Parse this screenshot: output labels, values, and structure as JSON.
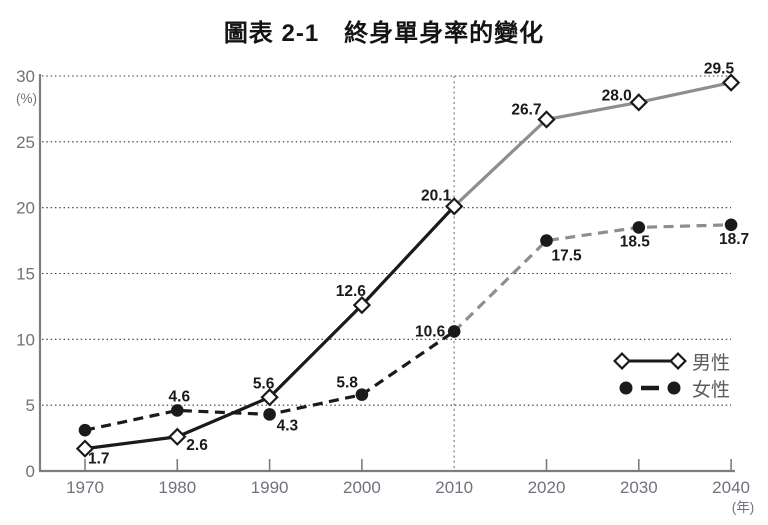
{
  "title": "圖表 2-1　終身單身率的變化",
  "chart_data": {
    "type": "line",
    "title": "圖表 2-1　終身單身率的變化",
    "x": [
      1970,
      1980,
      1990,
      2000,
      2010,
      2020,
      2030,
      2040
    ],
    "x_tick_labels": [
      "1970",
      "1980",
      "1990",
      "2000",
      "2010",
      "2020",
      "2030",
      "2040"
    ],
    "x_unit_label": "(年)",
    "y_unit_label": "(%)",
    "y_ticks": [
      0,
      5,
      10,
      15,
      20,
      25,
      30
    ],
    "y_tick_labels": [
      "0",
      "5",
      "10",
      "15",
      "20",
      "25",
      "30"
    ],
    "ylim": [
      0,
      30
    ],
    "grid": "horizontal-dotted",
    "projection_divider_x": 2010,
    "series": [
      {
        "name": "男性",
        "marker": "diamond",
        "line_style": "solid",
        "values": [
          1.7,
          2.6,
          5.6,
          12.6,
          20.1,
          26.7,
          28.0,
          29.5
        ],
        "point_labels": [
          "1.7",
          "2.6",
          "5.6",
          "12.6",
          "20.1",
          "26.7",
          "28.0",
          "29.5"
        ]
      },
      {
        "name": "女性",
        "marker": "filled-circle",
        "line_style": "dashed",
        "values": [
          3.1,
          4.6,
          4.3,
          5.8,
          10.6,
          17.5,
          18.5,
          18.7
        ],
        "point_labels": [
          "",
          "4.6",
          "4.3",
          "5.8",
          "10.6",
          "17.5",
          "18.5",
          "18.7"
        ]
      }
    ],
    "legend": {
      "position": "right-middle",
      "items": [
        "男性",
        "女性"
      ]
    },
    "colors": {
      "line_past": "#1a1a1a",
      "line_projected": "#8e8e8e",
      "axis": "#7e7e7e",
      "grid": "#3a3a3a",
      "tick_label": "#6f737b",
      "data_label": "#1a1a1a",
      "legend_label": "#5c5c5c",
      "marker_fill_male": "#ffffff",
      "marker_fill_female": "#1a1a1a",
      "background": "#ffffff"
    }
  }
}
